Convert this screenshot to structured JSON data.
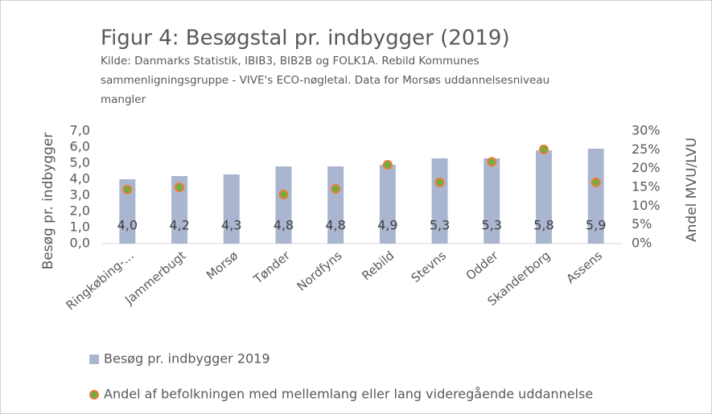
{
  "chart_data": {
    "type": "bar",
    "title": "Figur 4: Besøgstal pr. indbygger (2019)",
    "subtitle": [
      "Kilde: Danmarks Statistik, IBIB3, BIB2B og FOLK1A. Rebild Kommunes",
      "sammenligningsgruppe - VIVE's ECO-nøgletal. Data for Morsøs uddannelsesniveau",
      "mangler"
    ],
    "ylabel": "Besøg pr. indbygger",
    "y2label": "Andel MVU/LVU",
    "categories": [
      "Ringkøbing-...",
      "Jammerbugt",
      "Morsø",
      "Tønder",
      "Nordfyns",
      "Rebild",
      "Stevns",
      "Odder",
      "Skanderborg",
      "Assens"
    ],
    "series": [
      {
        "name": "Besøg pr. indbygger 2019",
        "type": "bar",
        "color": "#aab6cf",
        "values": [
          4.0,
          4.2,
          4.3,
          4.8,
          4.8,
          4.9,
          5.3,
          5.3,
          5.8,
          5.9
        ],
        "value_labels": [
          "4,0",
          "4,2",
          "4,3",
          "4,8",
          "4,8",
          "4,9",
          "5,3",
          "5,3",
          "5,8",
          "5,9"
        ]
      },
      {
        "name": "Andel af befolkningen med mellemlang eller lang videregående uddannelse",
        "type": "scatter",
        "axis": "y2",
        "color": "#70ad47",
        "edgecolor": "#ed7d31",
        "values": [
          14.4,
          15.0,
          null,
          13.1,
          14.6,
          21.0,
          16.3,
          21.8,
          25.1,
          16.3
        ]
      }
    ],
    "ylim": [
      0,
      7
    ],
    "yticks": [
      {
        "value": 0,
        "label": "0,0"
      },
      {
        "value": 1,
        "label": "1,0"
      },
      {
        "value": 2,
        "label": "2,0"
      },
      {
        "value": 3,
        "label": "3,0"
      },
      {
        "value": 4,
        "label": "4,0"
      },
      {
        "value": 5,
        "label": "5,0"
      },
      {
        "value": 6,
        "label": "6,0"
      },
      {
        "value": 7,
        "label": "7,0"
      }
    ],
    "y2lim": [
      0,
      30
    ],
    "y2ticks": [
      {
        "value": 0,
        "label": "0%"
      },
      {
        "value": 5,
        "label": "5%"
      },
      {
        "value": 10,
        "label": "10%"
      },
      {
        "value": 15,
        "label": "15%"
      },
      {
        "value": 20,
        "label": "20%"
      },
      {
        "value": 25,
        "label": "25%"
      },
      {
        "value": 30,
        "label": "30%"
      }
    ],
    "grid": false,
    "legend": "bottom"
  }
}
